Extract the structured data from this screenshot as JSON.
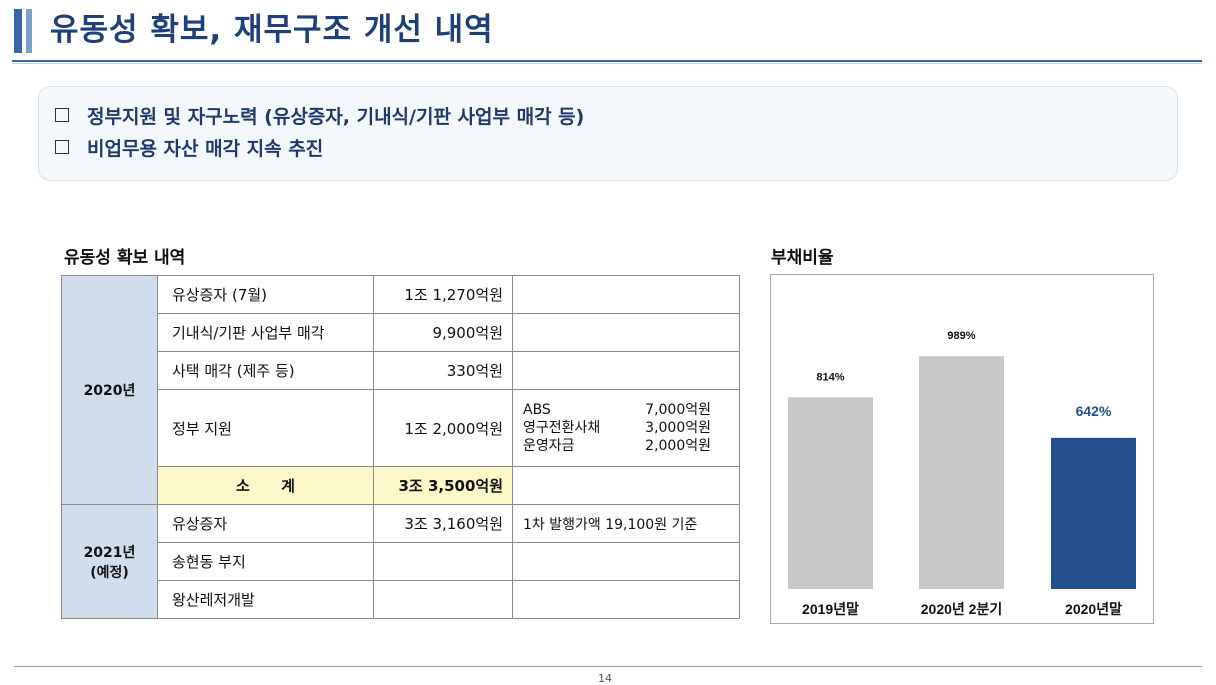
{
  "header": {
    "title": "유동성 확보, 재무구조 개선 내역"
  },
  "summary": {
    "items": [
      "정부지원 및 자구노력 (유상증자, 기내식/기판 사업부 매각 등)",
      "비업무용 자산 매각 지속 추진"
    ]
  },
  "liquidity": {
    "title": "유동성 확보 내역",
    "groups": [
      {
        "year": "2020년",
        "rows": [
          {
            "item": "유상증자 (7월)",
            "amount": "1조 1,270억원"
          },
          {
            "item": "기내식/기판 사업부 매각",
            "amount": "9,900억원"
          },
          {
            "item": "사택 매각 (제주 등)",
            "amount": "330억원"
          },
          {
            "item": "정부 지원",
            "amount": "1조 2,000억원",
            "notes": [
              {
                "label": "ABS",
                "value": "7,000억원"
              },
              {
                "label": "영구전환사채",
                "value": "3,000억원"
              },
              {
                "label": "운영자금",
                "value": "2,000억원"
              }
            ]
          }
        ],
        "subtotal": {
          "label": "소      계",
          "amount": "3조 3,500억원"
        }
      },
      {
        "year_line1": "2021년",
        "year_line2": "(예정)",
        "rows": [
          {
            "item": "유상증자",
            "amount": "3조 3,160억원",
            "note": "1차 발행가액 19,100원 기준"
          },
          {
            "item": "송현동 부지",
            "amount": ""
          },
          {
            "item": "왕산레저개발",
            "amount": ""
          }
        ]
      }
    ]
  },
  "debt_ratio": {
    "title": "부채비율",
    "chart_data": {
      "type": "bar",
      "categories": [
        "2019년말",
        "2020년 2분기",
        "2020년말"
      ],
      "values": [
        814,
        989,
        642
      ],
      "labels": [
        "814%",
        "989%",
        "642%"
      ],
      "ylim": [
        0,
        1100
      ],
      "colors": [
        "#c8c8c8",
        "#c8c8c8",
        "#22508c"
      ],
      "label_colors": [
        "#111111",
        "#111111",
        "#1f4f8f"
      ],
      "title": "",
      "xlabel": "",
      "ylabel": "",
      "grid": false
    }
  },
  "footer": {
    "page": "14"
  }
}
